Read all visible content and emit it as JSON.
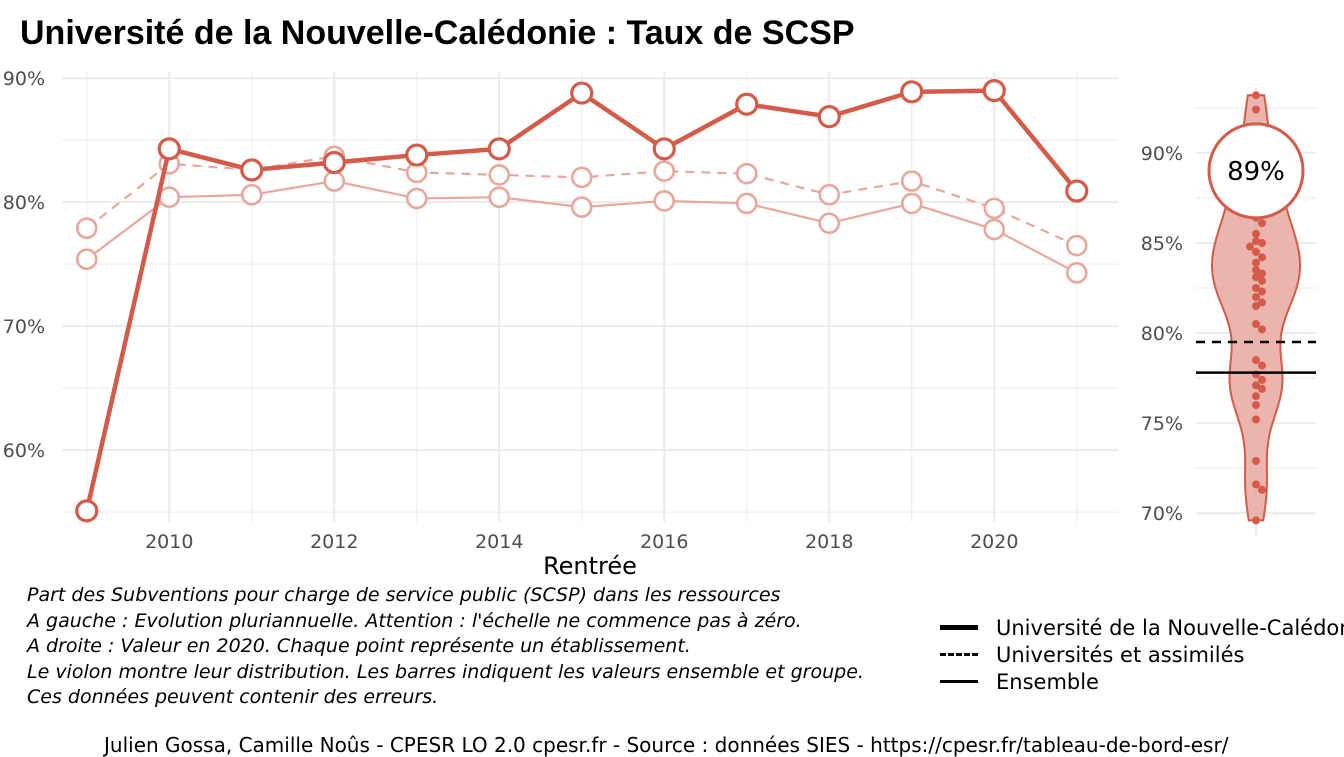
{
  "title": "Université de la Nouvelle-Calédonie  :  Taux de SCSP",
  "colors": {
    "accent": "#d45b4a",
    "light": "#e8a79d",
    "grid": "#ebebeb"
  },
  "chart_data": [
    {
      "type": "line",
      "xlabel": "Rentrée",
      "ylabel": "",
      "xlim": [
        2008.7,
        2021.5
      ],
      "ylim": [
        54.2,
        90.5
      ],
      "x_ticks": [
        2010,
        2012,
        2014,
        2016,
        2018,
        2020
      ],
      "x_tick_labels": [
        "2010",
        "2012",
        "2014",
        "2016",
        "2018",
        "2020"
      ],
      "y_ticks": [
        60,
        70,
        80,
        90
      ],
      "y_tick_labels": [
        "60%",
        "70%",
        "80%",
        "90%"
      ],
      "grid": true,
      "x": [
        2009,
        2010,
        2011,
        2012,
        2013,
        2014,
        2015,
        2016,
        2017,
        2018,
        2019,
        2020,
        2021
      ],
      "series": [
        {
          "name": "Université de la Nouvelle-Calédonie",
          "style": "solid-thick",
          "values": [
            55.1,
            84.3,
            82.6,
            83.2,
            83.8,
            84.3,
            88.8,
            84.3,
            87.9,
            86.9,
            88.9,
            89.0,
            80.9
          ]
        },
        {
          "name": "Universités et assimilés",
          "style": "dashed",
          "values": [
            77.9,
            83.1,
            82.6,
            83.7,
            82.4,
            82.2,
            82.0,
            82.5,
            82.3,
            80.6,
            81.7,
            79.5,
            76.5
          ]
        },
        {
          "name": "Ensemble",
          "style": "solid-thin",
          "values": [
            75.4,
            80.4,
            80.6,
            81.7,
            80.3,
            80.4,
            79.6,
            80.1,
            79.9,
            78.3,
            79.9,
            77.8,
            74.3
          ]
        }
      ]
    },
    {
      "type": "violin",
      "ylim": [
        69.4,
        93.6
      ],
      "y_ticks": [
        70,
        75,
        80,
        85,
        90
      ],
      "y_tick_labels": [
        "70%",
        "75%",
        "80%",
        "85%",
        "90%"
      ],
      "highlight_value": 89,
      "highlight_label": "89%",
      "reference_lines": [
        {
          "name": "Universités et assimilés",
          "value": 79.5,
          "style": "dashed"
        },
        {
          "name": "Ensemble",
          "value": 77.8,
          "style": "solid"
        }
      ],
      "points": [
        93.2,
        92.4,
        91.0,
        89.8,
        89.0,
        88.6,
        88.0,
        87.5,
        87.0,
        86.4,
        86.1,
        85.5,
        85.1,
        85.0,
        84.8,
        84.5,
        84.2,
        83.9,
        83.5,
        83.3,
        83.1,
        82.9,
        82.5,
        82.3,
        82.0,
        81.7,
        81.5,
        80.5,
        80.2,
        78.5,
        78.2,
        77.7,
        77.4,
        77.1,
        76.9,
        76.5,
        76.0,
        75.2,
        72.9,
        71.6,
        71.3,
        69.6
      ]
    }
  ],
  "caption_lines": [
    "Part des Subventions pour charge de service public (SCSP) dans les ressources",
    "A gauche : Evolution pluriannuelle. Attention : l'échelle ne commence pas à zéro.",
    "A droite : Valeur en 2020. Chaque point représente un établissement.",
    "Le violon montre leur distribution. Les barres indiquent les valeurs ensemble et groupe.",
    "Ces données peuvent contenir des erreurs."
  ],
  "legend": [
    {
      "label": "Université de la Nouvelle-Calédonie",
      "style": "thick"
    },
    {
      "label": "Universités et assimilés",
      "style": "dashed"
    },
    {
      "label": "Ensemble",
      "style": "solid"
    }
  ],
  "footer": "Julien Gossa, Camille Noûs - CPESR LO 2.0 cpesr.fr - Source : données SIES - https://cpesr.fr/tableau-de-bord-esr/"
}
